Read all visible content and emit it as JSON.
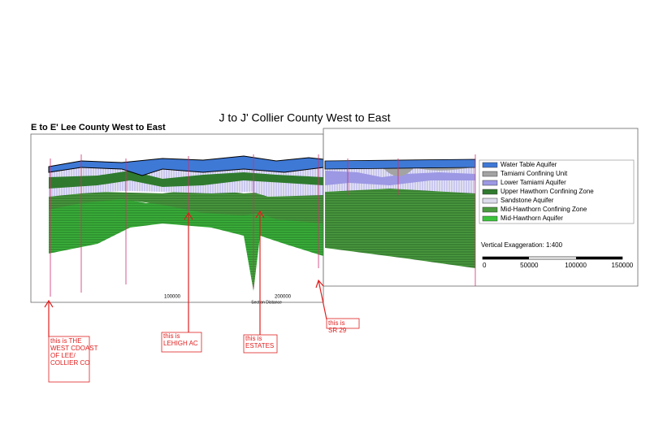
{
  "header": {
    "title": "J to J' Collier County West to East",
    "subtitle": "E to E' Lee County West to East"
  },
  "left_axis": {
    "ticks": [
      "100000",
      "200000"
    ],
    "label": "Section Distance"
  },
  "legend": {
    "items": [
      {
        "label": "Water Table Aquifer",
        "color": "#3f79d6"
      },
      {
        "label": "Tamiami Confining Unit",
        "color": "#a3a3a3"
      },
      {
        "label": "Lower Tamiami Aquifer",
        "color": "#9c98e4"
      },
      {
        "label": "Upper Hawthorn Confining Zone",
        "color": "#2f7a2f"
      },
      {
        "label": "Sandstone Aquifer",
        "color": "#dcdcec"
      },
      {
        "label": "Mid-Hawthorn Confining Zone",
        "color": "#4b9b3f"
      },
      {
        "label": "Mid-Hawthorn Aquifer",
        "color": "#3bc43b"
      }
    ]
  },
  "exaggeration": "Vertical Exaggeration: 1:400",
  "scale": {
    "ticks": [
      "0",
      "50000",
      "100000",
      "150000"
    ]
  },
  "annotations": [
    "this is THE WEST CDOAST OF LEE/ COLLIER CO",
    "this is LEHIGH AC",
    "this is ESTATES",
    "this is SR 29"
  ]
}
